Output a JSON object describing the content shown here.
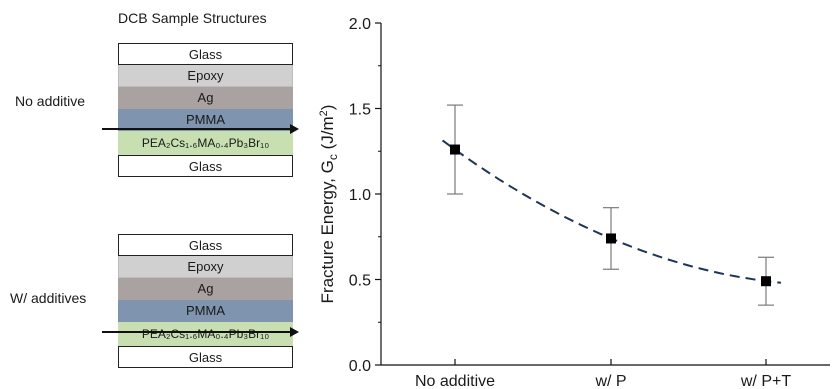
{
  "left_panel": {
    "title": "DCB Sample Structures",
    "structures": [
      {
        "side_label": "No additive",
        "layers": [
          "Glass",
          "Epoxy",
          "Ag",
          "PMMA",
          "PEA₂Cs₁.₆MA₀.₄Pb₃Br₁₀",
          "Glass"
        ]
      },
      {
        "side_label": "W/ additives",
        "layers": [
          "Glass",
          "Epoxy",
          "Ag",
          "PMMA",
          "PEA₂Cs₁.₆MA₀.₄Pb₃Br₁₀",
          "Glass"
        ]
      }
    ]
  },
  "chart_data": {
    "type": "scatter",
    "categories": [
      "No additive",
      "w/ P",
      "w/ P+T"
    ],
    "series": [
      {
        "values": [
          1.26,
          0.74,
          0.49
        ],
        "error": [
          0.26,
          0.18,
          0.14
        ]
      }
    ],
    "trendline": "dashed quadratic fit",
    "ylabel": "Fracture Energy, G",
    "ylabel_subscript": "c",
    "ylabel_unit_prefix": "(J/m",
    "ylabel_unit_exponent": "2",
    "ylabel_unit_suffix": ")",
    "ylim": [
      0.0,
      2.0
    ],
    "yticks": [
      "0.0",
      "0.5",
      "1.0",
      "1.5",
      "2.0"
    ],
    "marker_color": "#000000",
    "line_color": "#1f3558"
  }
}
